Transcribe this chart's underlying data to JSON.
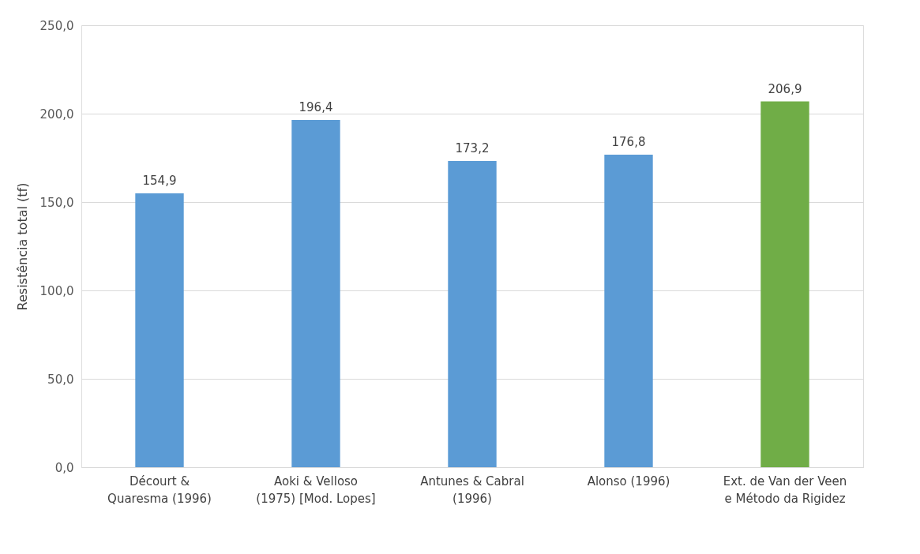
{
  "chart_data": {
    "type": "bar",
    "ylabel": "Resistência total (tf)",
    "categories": [
      "Décourt &\nQuaresma (1996)",
      "Aoki & Velloso\n(1975) [Mod. Lopes]",
      "Antunes & Cabral\n(1996)",
      "Alonso (1996)",
      "Ext. de Van der Veen\ne Método da Rigidez"
    ],
    "values": [
      154.9,
      196.4,
      173.2,
      176.8,
      206.9
    ],
    "colors": [
      "#5b9bd5",
      "#5b9bd5",
      "#5b9bd5",
      "#5b9bd5",
      "#70ad47"
    ],
    "value_labels": [
      "154,9",
      "196,4",
      "173,2",
      "176,8",
      "206,9"
    ],
    "ylim": [
      0,
      250
    ],
    "yticks": [
      {
        "value": 0,
        "label": "0,0"
      },
      {
        "value": 50,
        "label": "50,0"
      },
      {
        "value": 100,
        "label": "100,0"
      },
      {
        "value": 150,
        "label": "150,0"
      },
      {
        "value": 200,
        "label": "200,0"
      },
      {
        "value": 250,
        "label": "250,0"
      }
    ],
    "grid": "y"
  }
}
